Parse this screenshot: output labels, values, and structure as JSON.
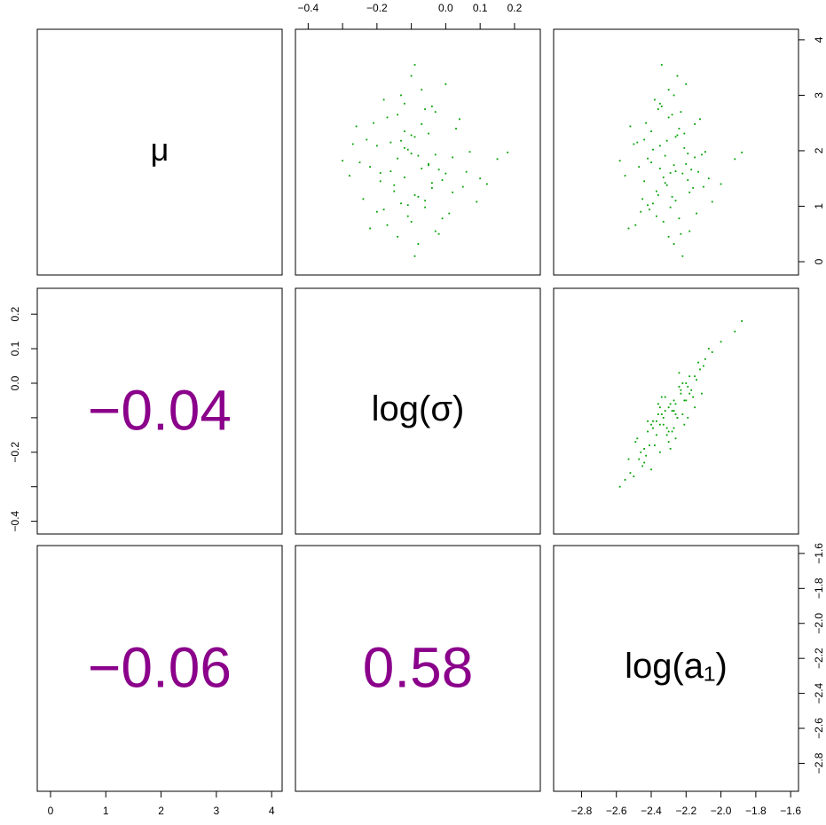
{
  "chart_data": {
    "type": "pairs",
    "point_color": "#00a000",
    "text_color": "#8b008b",
    "correlations": [
      "−0.04",
      "−0.06",
      "0.58"
    ],
    "variables": [
      {
        "label": "μ",
        "lim": [
          -0.24,
          4.19
        ],
        "ticks": [
          0,
          1,
          2,
          3,
          4
        ],
        "values": [
          1.52,
          2.31,
          0.94,
          1.88,
          1.2,
          2.65,
          1.71,
          0.55,
          2.02,
          1.35,
          3.1,
          1.63,
          0.78,
          2.44,
          1.95,
          1.08,
          2.8,
          1.45,
          0.32,
          2.18,
          1.59,
          1.82,
          0.98,
          2.57,
          1.27,
          2.09,
          1.66,
          3.35,
          0.66,
          1.91,
          1.4,
          2.35,
          1.13,
          1.76,
          2.92,
          0.87,
          2.25,
          1.55,
          2.7,
          1.02,
          1.98,
          0.45,
          1.68,
          2.5,
          1.33,
          3.0,
          1.85,
          0.72,
          2.15,
          1.47,
          1.79,
          2.4,
          1.17,
          2.05,
          0.9,
          1.62,
          2.75,
          1.38,
          3.55,
          1.93,
          0.6,
          2.28,
          1.5,
          1.05,
          2.6,
          1.74,
          0.1,
          2.12,
          1.25,
          1.86,
          2.48,
          0.82,
          1.6,
          3.2,
          1.42,
          2.2,
          1.1,
          1.97,
          2.85,
          0.5
        ]
      },
      {
        "label": "log(σ)",
        "lim": [
          -0.437,
          0.275
        ],
        "ticks": [
          {
            "value": -0.4,
            "label": "−0.4"
          },
          {
            "value": -0.3,
            "label": null
          },
          {
            "value": -0.2,
            "label": "−0.2"
          },
          {
            "value": -0.1,
            "label": null
          },
          {
            "value": 0,
            "label": "0.0"
          },
          0.1,
          0.2
        ],
        "values": [
          -0.12,
          -0.05,
          -0.18,
          0.02,
          -0.09,
          -0.14,
          -0.22,
          -0.03,
          -0.11,
          0.05,
          -0.07,
          -0.16,
          -0.01,
          -0.26,
          -0.1,
          0.09,
          -0.04,
          -0.19,
          -0.08,
          -0.13,
          0.0,
          -0.3,
          -0.06,
          0.04,
          -0.15,
          -0.2,
          -0.02,
          -0.1,
          -0.17,
          -0.08,
          0.12,
          -0.12,
          -0.24,
          -0.05,
          -0.18,
          0.01,
          -0.09,
          -0.28,
          -0.03,
          -0.11,
          0.07,
          -0.14,
          -0.07,
          -0.21,
          -0.04,
          -0.13,
          0.15,
          -0.1,
          -0.16,
          -0.01,
          -0.25,
          0.03,
          -0.08,
          -0.12,
          -0.2,
          0.06,
          -0.06,
          -0.15,
          -0.09,
          -0.03,
          -0.22,
          -0.1,
          0.1,
          -0.13,
          -0.17,
          -0.05,
          -0.09,
          -0.27,
          0.02,
          -0.14,
          -0.07,
          -0.11,
          -0.19,
          0.0,
          -0.04,
          -0.23,
          -0.06,
          0.18,
          -0.12,
          -0.02
        ]
      },
      {
        "label": "log(a₁)",
        "lim": [
          -2.96,
          -1.555
        ],
        "ticks": [
          {
            "value": -2.8,
            "label": "−2.8"
          },
          {
            "value": -2.6,
            "label": "−2.6"
          },
          {
            "value": -2.4,
            "label": "−2.4"
          },
          {
            "value": -2.2,
            "label": "−2.2"
          },
          {
            "value": -2.0,
            "label": "−2.0"
          },
          {
            "value": -1.8,
            "label": "−1.8"
          },
          {
            "value": -1.6,
            "label": "−1.6"
          }
        ],
        "values": [
          -2.33,
          -2.21,
          -2.41,
          -2.15,
          -2.36,
          -2.28,
          -2.47,
          -2.18,
          -2.39,
          -2.1,
          -2.3,
          -2.26,
          -2.24,
          -2.52,
          -2.19,
          -2.05,
          -2.34,
          -2.44,
          -2.27,
          -2.31,
          -2.22,
          -2.58,
          -2.29,
          -2.12,
          -2.37,
          -2.35,
          -2.17,
          -2.25,
          -2.49,
          -2.32,
          -2.0,
          -2.4,
          -2.45,
          -2.2,
          -2.38,
          -2.14,
          -2.26,
          -2.55,
          -2.23,
          -2.42,
          -2.09,
          -2.3,
          -2.35,
          -2.43,
          -2.16,
          -2.27,
          -1.92,
          -2.33,
          -2.48,
          -2.19,
          -2.4,
          -2.24,
          -2.28,
          -2.21,
          -2.46,
          -2.13,
          -2.36,
          -2.31,
          -2.34,
          -2.11,
          -2.53,
          -2.25,
          -2.07,
          -2.39,
          -2.3,
          -2.27,
          -2.22,
          -2.5,
          -2.18,
          -2.42,
          -2.15,
          -2.37,
          -2.29,
          -2.2,
          -2.32,
          -2.44,
          -2.26,
          -1.88,
          -2.35,
          -2.23
        ]
      }
    ]
  }
}
